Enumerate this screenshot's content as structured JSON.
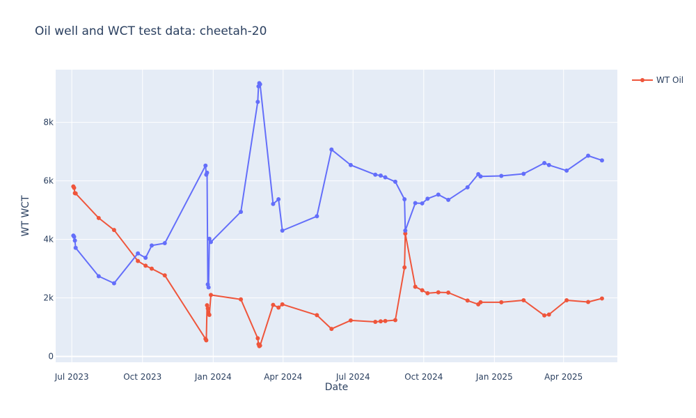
{
  "chart_data": {
    "type": "line",
    "title": "Oil well and WCT test data: cheetah-20",
    "xlabel": "Date",
    "ylabel": "WT WCT",
    "x_type": "date",
    "xlim": [
      "2023-06-10",
      "2025-06-10"
    ],
    "ylim": [
      -200,
      9800
    ],
    "x_ticks": [
      {
        "date": "2023-07-01",
        "label": "Jul 2023"
      },
      {
        "date": "2023-10-01",
        "label": "Oct 2023"
      },
      {
        "date": "2024-01-01",
        "label": "Jan 2024"
      },
      {
        "date": "2024-04-01",
        "label": "Apr 2024"
      },
      {
        "date": "2024-07-01",
        "label": "Jul 2024"
      },
      {
        "date": "2024-10-01",
        "label": "Oct 2024"
      },
      {
        "date": "2025-01-01",
        "label": "Jan 2025"
      },
      {
        "date": "2025-04-01",
        "label": "Apr 2025"
      }
    ],
    "y_ticks": [
      {
        "value": 0,
        "label": "0"
      },
      {
        "value": 2000,
        "label": "2k"
      },
      {
        "value": 4000,
        "label": "4k"
      },
      {
        "value": 6000,
        "label": "6k"
      },
      {
        "value": 8000,
        "label": "8k"
      }
    ],
    "grid": true,
    "legend_position": "top-right",
    "colors": {
      "plot_bg": "#e5ecf6",
      "grid": "#ffffff",
      "series_0": "#EF553B",
      "series_1": "#636EFA"
    },
    "series": [
      {
        "name": "WT Oil",
        "show_in_legend": true,
        "color": "#EF553B",
        "x": [
          "2023-07-03",
          "2023-07-04",
          "2023-07-05",
          "2023-07-06",
          "2023-08-05",
          "2023-08-25",
          "2023-09-25",
          "2023-10-05",
          "2023-10-13",
          "2023-10-30",
          "2023-12-22",
          "2023-12-23",
          "2023-12-24",
          "2023-12-25",
          "2023-12-26",
          "2023-12-27",
          "2023-12-29",
          "2024-02-06",
          "2024-02-28",
          "2024-02-29",
          "2024-03-01",
          "2024-03-02",
          "2024-03-19",
          "2024-03-26",
          "2024-03-31",
          "2024-05-15",
          "2024-06-03",
          "2024-06-28",
          "2024-07-30",
          "2024-08-06",
          "2024-08-12",
          "2024-08-25",
          "2024-09-06",
          "2024-09-07",
          "2024-09-20",
          "2024-09-29",
          "2024-10-06",
          "2024-10-20",
          "2024-11-02",
          "2024-11-27",
          "2024-12-11",
          "2024-12-14",
          "2025-01-10",
          "2025-02-08",
          "2025-03-07",
          "2025-03-13",
          "2025-04-05",
          "2025-05-03",
          "2025-05-21"
        ],
        "values": [
          5810,
          5760,
          5580,
          5570,
          4730,
          4320,
          3260,
          3100,
          3000,
          2770,
          600,
          550,
          1750,
          1640,
          1460,
          1420,
          2100,
          1950,
          620,
          420,
          350,
          370,
          1760,
          1670,
          1780,
          1410,
          940,
          1230,
          1180,
          1200,
          1210,
          1240,
          3040,
          4200,
          2380,
          2260,
          2160,
          2190,
          2180,
          1910,
          1780,
          1850,
          1850,
          1920,
          1400,
          1430,
          1920,
          1860,
          1980
        ]
      },
      {
        "name": "",
        "show_in_legend": false,
        "color": "#636EFA",
        "x": [
          "2023-07-03",
          "2023-07-04",
          "2023-07-05",
          "2023-07-06",
          "2023-08-05",
          "2023-08-25",
          "2023-09-25",
          "2023-10-05",
          "2023-10-13",
          "2023-10-30",
          "2023-12-22",
          "2023-12-23",
          "2023-12-24",
          "2023-12-25",
          "2023-12-26",
          "2023-12-27",
          "2023-12-29",
          "2024-02-06",
          "2024-02-28",
          "2024-02-29",
          "2024-03-01",
          "2024-03-02",
          "2024-03-19",
          "2024-03-26",
          "2024-03-31",
          "2024-05-15",
          "2024-06-03",
          "2024-06-28",
          "2024-07-30",
          "2024-08-06",
          "2024-08-12",
          "2024-08-25",
          "2024-09-06",
          "2024-09-07",
          "2024-09-20",
          "2024-09-29",
          "2024-10-06",
          "2024-10-20",
          "2024-11-02",
          "2024-11-27",
          "2024-12-11",
          "2024-12-14",
          "2025-01-10",
          "2025-02-08",
          "2025-03-07",
          "2025-03-13",
          "2025-04-05",
          "2025-05-03",
          "2025-05-21"
        ],
        "values": [
          4130,
          4090,
          3960,
          3710,
          2740,
          2500,
          3520,
          3370,
          3790,
          3870,
          6520,
          6210,
          6280,
          2460,
          2360,
          4020,
          3910,
          4940,
          8700,
          9230,
          9340,
          9300,
          5210,
          5370,
          4300,
          4790,
          7070,
          6540,
          6210,
          6180,
          6120,
          5970,
          5370,
          4300,
          5240,
          5230,
          5390,
          5530,
          5350,
          5780,
          6230,
          6150,
          6170,
          6240,
          6610,
          6540,
          6350,
          6860,
          6700
        ]
      }
    ]
  }
}
